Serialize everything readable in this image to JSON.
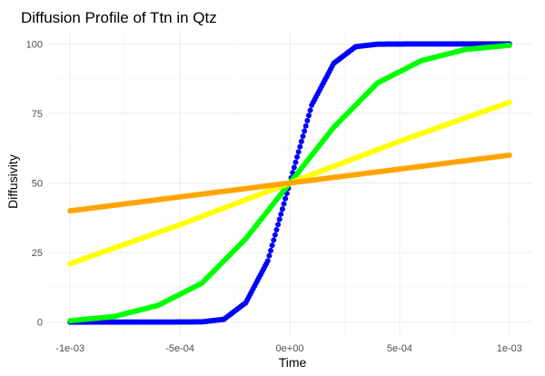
{
  "chart_data": {
    "type": "scatter",
    "title": "Diffusion Profile of Ttn in Qtz",
    "xlabel": "Time",
    "ylabel": "Diffusivity",
    "xlim": [
      -0.001,
      0.001
    ],
    "ylim": [
      0,
      100
    ],
    "x_ticks": [
      {
        "value": -0.001,
        "label": "-1e-03"
      },
      {
        "value": -0.0005,
        "label": "-5e-04"
      },
      {
        "value": 0,
        "label": "0e+00"
      },
      {
        "value": 0.0005,
        "label": "5e-04"
      },
      {
        "value": 0.001,
        "label": "1e-03"
      }
    ],
    "y_ticks": [
      {
        "value": 0,
        "label": "0"
      },
      {
        "value": 25,
        "label": "25"
      },
      {
        "value": 50,
        "label": "50"
      },
      {
        "value": 75,
        "label": "75"
      },
      {
        "value": 100,
        "label": "100"
      }
    ],
    "grid": true,
    "legend": "none",
    "series": [
      {
        "color": "#0000FF",
        "x": [
          -0.001,
          -0.0006,
          -0.0004,
          -0.0003,
          -0.0002,
          -0.0001,
          0,
          0.0001,
          0.0002,
          0.0003,
          0.0004,
          0.0006,
          0.001
        ],
        "y": [
          0,
          0,
          0.1,
          1,
          7,
          22,
          50,
          78,
          93,
          99,
          99.9,
          100,
          100
        ]
      },
      {
        "color": "#00FF00",
        "x": [
          -0.001,
          -0.0008,
          -0.0006,
          -0.0004,
          -0.0002,
          0,
          0.0002,
          0.0004,
          0.0006,
          0.0008,
          0.001
        ],
        "y": [
          0.5,
          2,
          6,
          14,
          30,
          50,
          70,
          86,
          94,
          98,
          99.5
        ]
      },
      {
        "color": "#FFFF00",
        "x": [
          -0.001,
          -0.0005,
          0,
          0.0005,
          0.001
        ],
        "y": [
          21,
          35,
          50,
          65,
          79
        ]
      },
      {
        "color": "#FFA500",
        "x": [
          -0.001,
          -0.0005,
          0,
          0.0005,
          0.001
        ],
        "y": [
          40,
          45,
          50,
          55,
          60
        ]
      }
    ]
  }
}
